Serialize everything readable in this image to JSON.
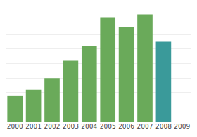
{
  "chart_data": {
    "type": "bar",
    "categories": [
      "2000",
      "2001",
      "2002",
      "2003",
      "2004",
      "2005",
      "2006",
      "2007",
      "2008",
      "2009"
    ],
    "values": [
      18,
      22,
      30,
      42,
      52,
      72,
      65,
      74,
      55,
      0
    ],
    "colors": [
      "#6aaa5a",
      "#6aaa5a",
      "#6aaa5a",
      "#6aaa5a",
      "#6aaa5a",
      "#6aaa5a",
      "#6aaa5a",
      "#6aaa5a",
      "#3a9a9a",
      "#ffffff"
    ],
    "ylim": [
      0,
      80
    ],
    "yticks": [
      0,
      10,
      20,
      30,
      40,
      50,
      60,
      70,
      80
    ],
    "grid": true,
    "tick_labels": "x"
  }
}
